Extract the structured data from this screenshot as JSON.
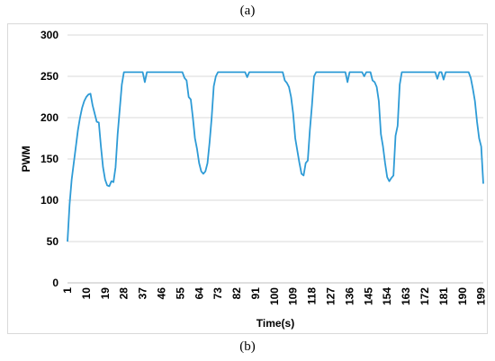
{
  "captions": {
    "top": "(a)",
    "bottom": "(b)"
  },
  "chart_data": {
    "type": "line",
    "title": "",
    "xlabel": "Time(s)",
    "ylabel": "PWM",
    "ylim": [
      0,
      300
    ],
    "yticks": [
      0,
      50,
      100,
      150,
      200,
      250,
      300
    ],
    "xticks": [
      1,
      10,
      19,
      28,
      37,
      46,
      55,
      64,
      73,
      82,
      91,
      100,
      109,
      118,
      127,
      136,
      145,
      154,
      163,
      172,
      181,
      190,
      199
    ],
    "xlim": [
      1,
      200
    ],
    "grid": true,
    "line_color": "#2e9bd6",
    "series": [
      {
        "points": [
          [
            1,
            50
          ],
          [
            2,
            95
          ],
          [
            3,
            125
          ],
          [
            4,
            145
          ],
          [
            5,
            165
          ],
          [
            6,
            185
          ],
          [
            7,
            200
          ],
          [
            8,
            212
          ],
          [
            9,
            220
          ],
          [
            10,
            225
          ],
          [
            11,
            228
          ],
          [
            12,
            229
          ],
          [
            13,
            215
          ],
          [
            14,
            205
          ],
          [
            15,
            195
          ],
          [
            16,
            194
          ],
          [
            17,
            165
          ],
          [
            18,
            140
          ],
          [
            19,
            125
          ],
          [
            20,
            118
          ],
          [
            21,
            117
          ],
          [
            22,
            123
          ],
          [
            23,
            122
          ],
          [
            24,
            140
          ],
          [
            25,
            180
          ],
          [
            26,
            210
          ],
          [
            27,
            240
          ],
          [
            28,
            255
          ],
          [
            37,
            255
          ],
          [
            38,
            243
          ],
          [
            39,
            255
          ],
          [
            55,
            255
          ],
          [
            56,
            255
          ],
          [
            57,
            248
          ],
          [
            58,
            245
          ],
          [
            59,
            225
          ],
          [
            60,
            222
          ],
          [
            61,
            200
          ],
          [
            62,
            175
          ],
          [
            63,
            162
          ],
          [
            64,
            145
          ],
          [
            65,
            135
          ],
          [
            66,
            132
          ],
          [
            67,
            135
          ],
          [
            68,
            145
          ],
          [
            69,
            170
          ],
          [
            70,
            200
          ],
          [
            71,
            238
          ],
          [
            72,
            250
          ],
          [
            73,
            255
          ],
          [
            86,
            255
          ],
          [
            87,
            249
          ],
          [
            88,
            255
          ],
          [
            104,
            255
          ],
          [
            105,
            245
          ],
          [
            106,
            242
          ],
          [
            107,
            237
          ],
          [
            108,
            225
          ],
          [
            109,
            205
          ],
          [
            110,
            175
          ],
          [
            111,
            160
          ],
          [
            112,
            145
          ],
          [
            113,
            132
          ],
          [
            114,
            130
          ],
          [
            115,
            145
          ],
          [
            116,
            148
          ],
          [
            117,
            185
          ],
          [
            118,
            215
          ],
          [
            119,
            250
          ],
          [
            120,
            255
          ],
          [
            134,
            255
          ],
          [
            135,
            243
          ],
          [
            136,
            255
          ],
          [
            142,
            255
          ],
          [
            143,
            250
          ],
          [
            144,
            255
          ],
          [
            146,
            255
          ],
          [
            147,
            245
          ],
          [
            148,
            243
          ],
          [
            149,
            237
          ],
          [
            150,
            220
          ],
          [
            151,
            180
          ],
          [
            152,
            165
          ],
          [
            153,
            145
          ],
          [
            154,
            128
          ],
          [
            155,
            123
          ],
          [
            156,
            127
          ],
          [
            157,
            130
          ],
          [
            158,
            178
          ],
          [
            159,
            190
          ],
          [
            160,
            240
          ],
          [
            161,
            255
          ],
          [
            177,
            255
          ],
          [
            178,
            247
          ],
          [
            179,
            255
          ],
          [
            180,
            255
          ],
          [
            181,
            246
          ],
          [
            182,
            255
          ],
          [
            193,
            255
          ],
          [
            194,
            248
          ],
          [
            195,
            235
          ],
          [
            196,
            220
          ],
          [
            197,
            195
          ],
          [
            198,
            175
          ],
          [
            199,
            165
          ],
          [
            200,
            120
          ]
        ]
      }
    ]
  }
}
